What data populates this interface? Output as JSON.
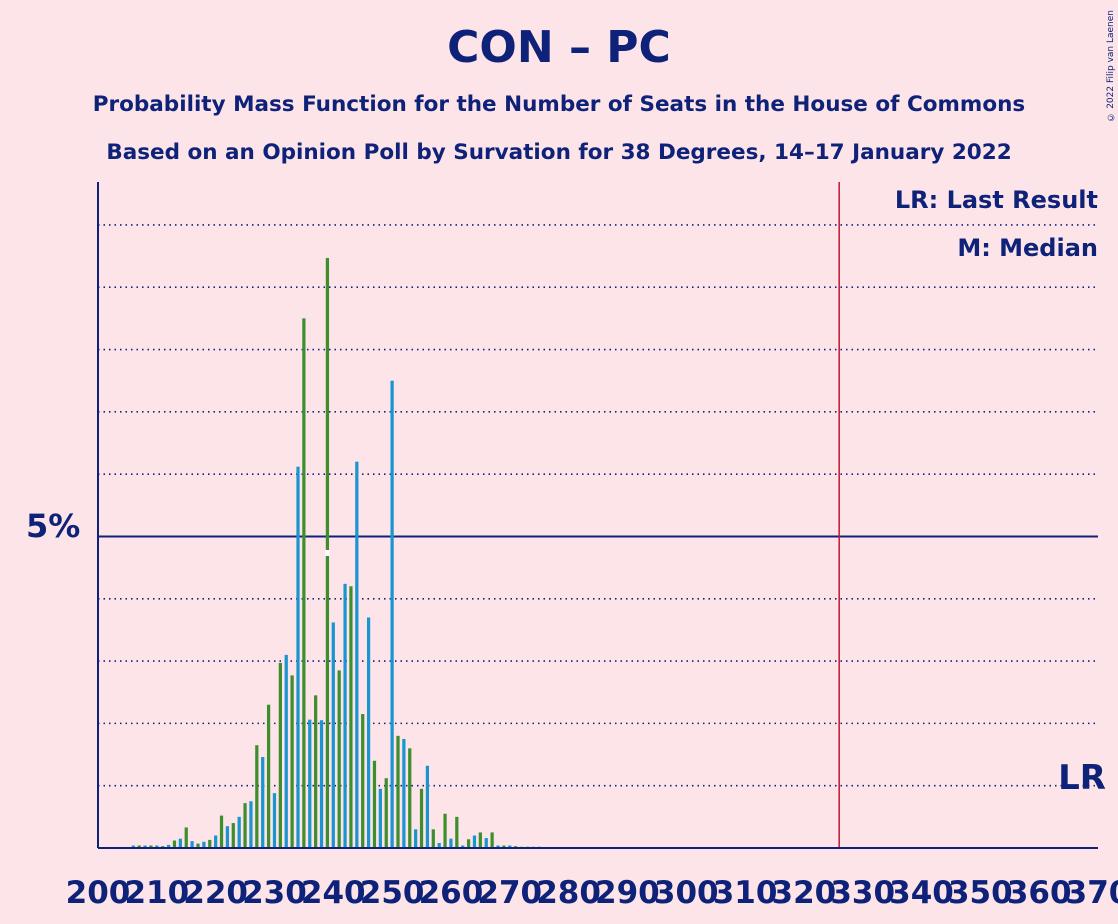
{
  "title": "CON – PC",
  "subtitle1": "Probability Mass Function for the Number of Seats in the House of Commons",
  "subtitle2": "Based on an Opinion Poll by Survation for 38 Degrees, 14–17 January 2022",
  "copyright": "© 2022 Filip van Laenen",
  "legend": {
    "last_result": "LR: Last Result",
    "median": "M: Median"
  },
  "colors": {
    "background": "#FDE4E8",
    "text": "#0D2278",
    "green": "#3E8E2E",
    "blue": "#1B95D0",
    "last_result_line": "#C0182F"
  },
  "chart_data": {
    "type": "bar",
    "x_range": [
      200,
      370
    ],
    "ylim": [
      0,
      10.4
    ],
    "y_unit": "%",
    "ytick_labels": [
      "5%"
    ],
    "xtick_labels": [
      "200",
      "210",
      "220",
      "230",
      "240",
      "250",
      "260",
      "270",
      "280",
      "290",
      "300",
      "310",
      "320",
      "330",
      "340",
      "350",
      "360",
      "370"
    ],
    "last_result": 326,
    "last_result_label": "LR",
    "median": 239,
    "series": [
      {
        "x": [
          206,
          207,
          208,
          209,
          210,
          211,
          212,
          213,
          214,
          215,
          216,
          217,
          218,
          219,
          220,
          221,
          222,
          223,
          224,
          225,
          226,
          227,
          228,
          229,
          230,
          231,
          232,
          233,
          234,
          235,
          236,
          237,
          238,
          239,
          240,
          241,
          242,
          243,
          244,
          245,
          246,
          247,
          248,
          249,
          250,
          251,
          252,
          253,
          254,
          255,
          256,
          257,
          258,
          259,
          260,
          261,
          262,
          263,
          264,
          265,
          266,
          267,
          268,
          269,
          270,
          271,
          272,
          273,
          274,
          275,
          276,
          277
        ],
        "values": [
          0.04,
          0.04,
          0.04,
          0.04,
          0.04,
          0.03,
          0.05,
          0.12,
          0.15,
          0.33,
          0.11,
          0.07,
          0.1,
          0.13,
          0.2,
          0.52,
          0.35,
          0.4,
          0.5,
          0.72,
          0.75,
          1.65,
          1.46,
          2.3,
          0.88,
          2.97,
          3.1,
          2.77,
          6.12,
          8.5,
          2.06,
          2.45,
          2.05,
          9.47,
          3.62,
          2.85,
          4.24,
          4.2,
          6.2,
          2.15,
          3.7,
          1.4,
          0.95,
          1.12,
          7.5,
          1.8,
          1.75,
          1.6,
          0.3,
          0.95,
          1.32,
          0.3,
          0.08,
          0.55,
          0.15,
          0.5,
          0.04,
          0.14,
          0.2,
          0.25,
          0.16,
          0.25,
          0.04,
          0.04,
          0.04,
          0.03,
          0.02,
          0.02,
          0.02,
          0.02,
          0.01,
          0.01
        ]
      }
    ]
  }
}
